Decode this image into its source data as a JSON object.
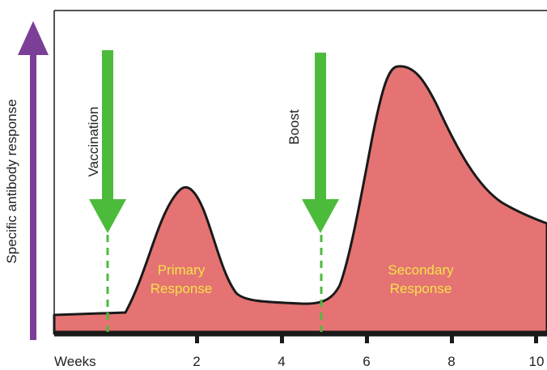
{
  "y_axis_label": "Specific antibody response",
  "x_axis_label": "Weeks",
  "x_ticks": [
    "2",
    "4",
    "6",
    "8",
    "10"
  ],
  "arrows": {
    "vaccination": "Vaccination",
    "boost": "Boost"
  },
  "regions": {
    "primary": [
      "Primary",
      "Response"
    ],
    "secondary": [
      "Secondary",
      "Response"
    ]
  },
  "colors": {
    "curve_fill": "#e57373",
    "curve_stroke": "#1a1a1a",
    "arrow_green": "#4cbb3c",
    "axis_purple": "#7b3f98",
    "response_text": "#f4e24a",
    "axis_line": "#1a1a1a"
  }
}
